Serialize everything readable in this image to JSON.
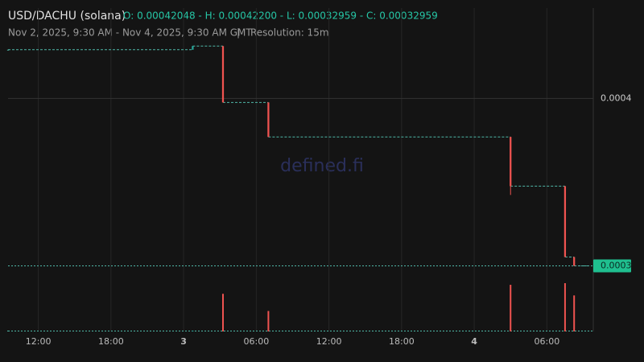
{
  "chart_data": {
    "type": "candlestick",
    "title": "USD/DACHU (solana)",
    "ohlc_label": "O: 0.00042048 - H: 0.00042200 - L: 0.00032959 - C: 0.00032959",
    "subtitle": "Nov 2, 2025, 9:30 AM - Nov 4, 2025, 9:30 AM GMT",
    "resolution": "Resolution: 15m",
    "watermark": "defined.fi",
    "x": [
      9.5,
      24.75,
      27.25,
      31.0,
      51.0,
      55.5,
      56.25
    ],
    "open": [
      0.00042048,
      0.00042048,
      0.000422,
      0.0003983,
      0.0003838,
      0.0003631,
      0.0003333
    ],
    "high": [
      0.00042048,
      0.000422,
      0.000422,
      0.0003983,
      0.0003838,
      0.0003631,
      0.0003333
    ],
    "low": [
      0.00042048,
      0.00042048,
      0.0003983,
      0.0003838,
      0.0003594,
      0.0003333,
      0.00032959
    ],
    "close": [
      0.00042048,
      0.000422,
      0.0003983,
      0.0003838,
      0.0003631,
      0.0003333,
      0.00032959
    ],
    "volume": [
      1,
      1,
      46,
      25,
      57,
      59,
      44
    ],
    "xlim": [
      9.5,
      57.5
    ],
    "xticks": [
      {
        "value": 12,
        "label": "12:00"
      },
      {
        "value": 18,
        "label": "18:00"
      },
      {
        "value": 24,
        "label": "3"
      },
      {
        "value": 30,
        "label": "06:00"
      },
      {
        "value": 36,
        "label": "12:00"
      },
      {
        "value": 42,
        "label": "18:00"
      },
      {
        "value": 48,
        "label": "4"
      },
      {
        "value": 54,
        "label": "06:00"
      }
    ],
    "ylim": [
      0.000302,
      0.000438
    ],
    "yticks": [
      0.0004
    ],
    "last_price": {
      "value": 0.00032959,
      "label": "0.0003"
    },
    "up_color": "#26a69a",
    "down_color": "#ef5350",
    "flat_color": "#4fb8a8",
    "grid": true
  }
}
